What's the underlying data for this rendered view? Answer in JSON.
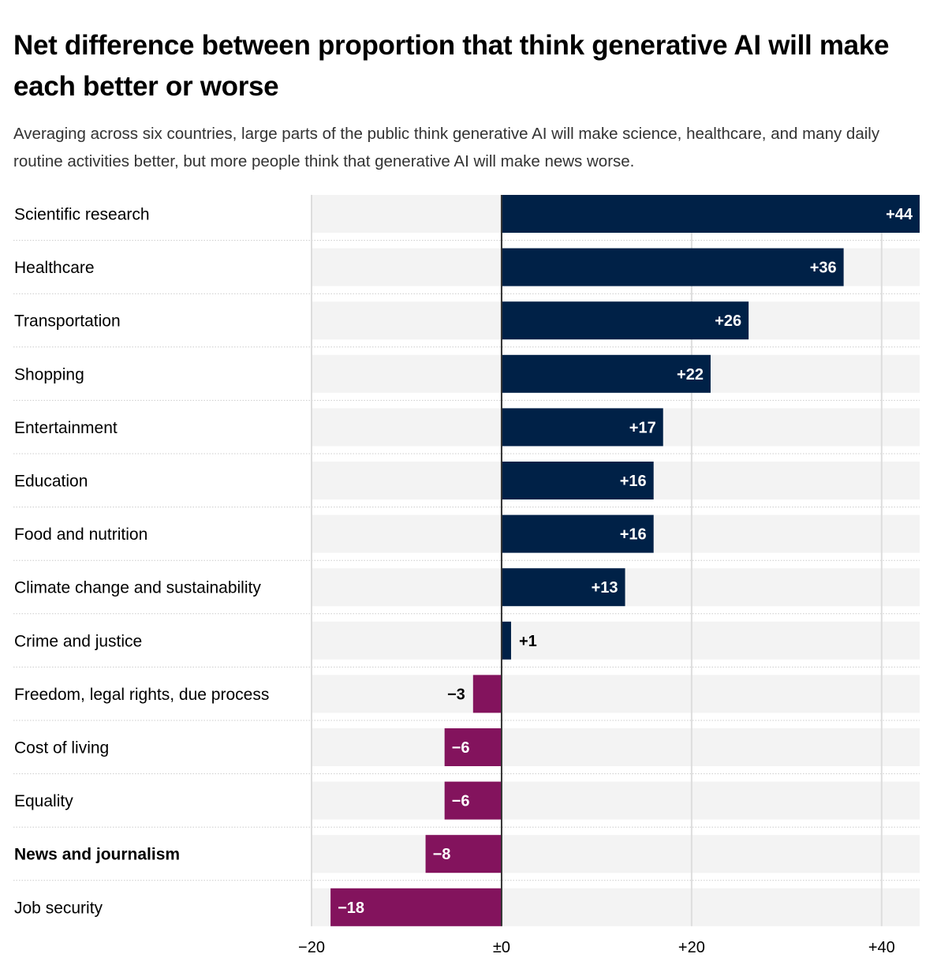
{
  "header": {
    "title": "Net difference between proportion that think generative AI will make each better or worse",
    "subtitle": "Averaging across six countries, large parts of the public think generative AI will make science, healthcare, and many daily routine activities better, but more people think that generative AI will make news worse."
  },
  "colors": {
    "positive": "#002147",
    "negative": "#83135d",
    "row_background": "#f3f3f3",
    "grid": "#dddddd",
    "zero_line": "#333333"
  },
  "chart_data": {
    "type": "bar",
    "orientation": "horizontal",
    "title": "Net difference between proportion that think generative AI will make each better or worse",
    "xlabel": "",
    "ylabel": "",
    "xlim": [
      -20,
      44
    ],
    "x_ticks": [
      -20,
      0,
      20,
      40
    ],
    "x_tick_labels": [
      "−20",
      "±0",
      "+20",
      "+40"
    ],
    "grid": true,
    "categories": [
      "Scientific research",
      "Healthcare",
      "Transportation",
      "Shopping",
      "Entertainment",
      "Education",
      "Food and nutrition",
      "Climate change and sustainability",
      "Crime and justice",
      "Freedom, legal rights, due process",
      "Cost of living",
      "Equality",
      "News and journalism",
      "Job security"
    ],
    "values": [
      44,
      36,
      26,
      22,
      17,
      16,
      16,
      13,
      1,
      -3,
      -6,
      -6,
      -8,
      -18
    ],
    "value_labels": [
      "+44",
      "+36",
      "+26",
      "+22",
      "+17",
      "+16",
      "+16",
      "+13",
      "+1",
      "−3",
      "−6",
      "−6",
      "−8",
      "−18"
    ],
    "highlighted": [
      "News and journalism"
    ]
  }
}
